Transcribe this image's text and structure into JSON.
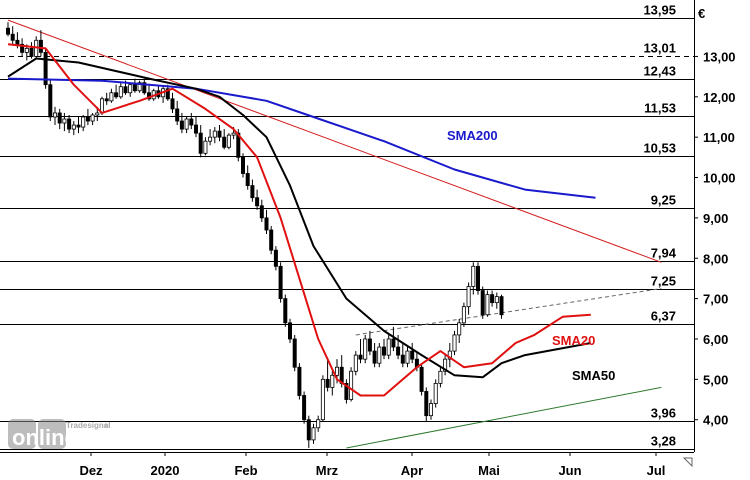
{
  "chart_data": {
    "type": "candlestick",
    "currency": "€",
    "x_ticks": [
      "Dez",
      "2020",
      "Feb",
      "Mrz",
      "Apr",
      "Mai",
      "Jun",
      "Jul"
    ],
    "y_ticks": [
      "4,00",
      "5,00",
      "6,00",
      "7,00",
      "8,00",
      "9,00",
      "10,00",
      "11,00",
      "12,00",
      "13,00"
    ],
    "y_tick_values": [
      4,
      5,
      6,
      7,
      8,
      9,
      10,
      11,
      12,
      13
    ],
    "ylim": [
      3.2,
      14.2
    ],
    "levels": [
      {
        "label": "13,95",
        "value": 13.95,
        "style": "solid"
      },
      {
        "label": "13,01",
        "value": 13.01,
        "style": "dashed"
      },
      {
        "label": "12,43",
        "value": 12.43,
        "style": "solid"
      },
      {
        "label": "11,53",
        "value": 11.53,
        "style": "solid"
      },
      {
        "label": "10,53",
        "value": 10.53,
        "style": "solid"
      },
      {
        "label": "9,25",
        "value": 9.25,
        "style": "solid"
      },
      {
        "label": "7,94",
        "value": 7.94,
        "style": "solid"
      },
      {
        "label": "7,25",
        "value": 7.25,
        "style": "solid"
      },
      {
        "label": "6,37",
        "value": 6.37,
        "style": "solid"
      },
      {
        "label": "3,96",
        "value": 3.96,
        "style": "solid"
      },
      {
        "label": "3,28",
        "value": 3.28,
        "style": "solid"
      }
    ],
    "candles": [
      [
        13.7,
        13.85,
        13.5,
        13.55
      ],
      [
        13.55,
        13.75,
        13.3,
        13.4
      ],
      [
        13.4,
        13.6,
        13.2,
        13.3
      ],
      [
        13.3,
        13.45,
        13.0,
        13.1
      ],
      [
        13.1,
        13.3,
        12.9,
        13.2
      ],
      [
        13.2,
        13.35,
        12.95,
        13.0
      ],
      [
        13.0,
        13.5,
        12.95,
        13.4
      ],
      [
        13.4,
        13.65,
        13.0,
        13.1
      ],
      [
        13.1,
        13.2,
        12.2,
        12.3
      ],
      [
        12.3,
        12.45,
        11.4,
        11.5
      ],
      [
        11.5,
        11.75,
        11.3,
        11.6
      ],
      [
        11.6,
        11.7,
        11.2,
        11.35
      ],
      [
        11.35,
        11.6,
        11.15,
        11.45
      ],
      [
        11.45,
        11.55,
        11.1,
        11.2
      ],
      [
        11.2,
        11.4,
        11.05,
        11.3
      ],
      [
        11.3,
        11.5,
        11.1,
        11.25
      ],
      [
        11.25,
        11.55,
        11.15,
        11.5
      ],
      [
        11.5,
        11.7,
        11.3,
        11.4
      ],
      [
        11.4,
        11.6,
        11.3,
        11.55
      ],
      [
        11.55,
        11.75,
        11.4,
        11.6
      ],
      [
        11.6,
        12.0,
        11.55,
        11.95
      ],
      [
        11.95,
        12.1,
        11.8,
        11.9
      ],
      [
        11.9,
        12.2,
        11.85,
        12.1
      ],
      [
        12.1,
        12.3,
        11.95,
        12.0
      ],
      [
        12.0,
        12.35,
        11.95,
        12.25
      ],
      [
        12.25,
        12.4,
        12.05,
        12.1
      ],
      [
        12.1,
        12.35,
        12.0,
        12.3
      ],
      [
        12.3,
        12.45,
        12.1,
        12.15
      ],
      [
        12.15,
        12.4,
        12.1,
        12.35
      ],
      [
        12.35,
        12.45,
        12.05,
        12.1
      ],
      [
        12.1,
        12.3,
        11.9,
        11.95
      ],
      [
        11.95,
        12.2,
        11.9,
        12.15
      ],
      [
        12.15,
        12.3,
        11.95,
        12.0
      ],
      [
        12.0,
        12.25,
        11.85,
        12.2
      ],
      [
        12.2,
        12.3,
        11.9,
        11.95
      ],
      [
        11.95,
        12.1,
        11.6,
        11.7
      ],
      [
        11.7,
        11.9,
        11.3,
        11.4
      ],
      [
        11.4,
        11.6,
        11.1,
        11.2
      ],
      [
        11.2,
        11.5,
        11.1,
        11.45
      ],
      [
        11.45,
        11.6,
        11.2,
        11.3
      ],
      [
        11.3,
        11.5,
        11.0,
        11.1
      ],
      [
        11.1,
        11.3,
        10.5,
        10.6
      ],
      [
        10.6,
        11.0,
        10.55,
        10.9
      ],
      [
        10.9,
        11.2,
        10.8,
        11.0
      ],
      [
        11.0,
        11.25,
        10.85,
        11.15
      ],
      [
        11.15,
        11.3,
        10.9,
        11.0
      ],
      [
        11.0,
        11.2,
        10.7,
        10.75
      ],
      [
        10.75,
        11.1,
        10.7,
        11.05
      ],
      [
        11.05,
        11.25,
        10.95,
        11.1
      ],
      [
        11.1,
        11.2,
        10.4,
        10.5
      ],
      [
        10.5,
        10.6,
        10.0,
        10.1
      ],
      [
        10.1,
        10.3,
        9.7,
        9.8
      ],
      [
        9.8,
        9.95,
        9.4,
        9.5
      ],
      [
        9.5,
        9.7,
        9.2,
        9.3
      ],
      [
        9.3,
        9.45,
        8.9,
        9.0
      ],
      [
        9.0,
        9.2,
        8.6,
        8.7
      ],
      [
        8.7,
        8.8,
        8.1,
        8.2
      ],
      [
        8.2,
        8.3,
        7.7,
        7.8
      ],
      [
        7.8,
        7.9,
        6.9,
        7.0
      ],
      [
        7.0,
        7.1,
        6.3,
        6.4
      ],
      [
        6.4,
        6.5,
        5.9,
        6.0
      ],
      [
        6.0,
        6.1,
        5.2,
        5.3
      ],
      [
        5.3,
        5.4,
        4.5,
        4.6
      ],
      [
        4.6,
        4.7,
        3.9,
        4.0
      ],
      [
        4.0,
        4.1,
        3.3,
        3.5
      ],
      [
        3.5,
        3.9,
        3.4,
        3.8
      ],
      [
        3.8,
        4.1,
        3.7,
        4.0
      ],
      [
        4.0,
        5.1,
        3.95,
        5.0
      ],
      [
        5.0,
        5.5,
        4.7,
        4.8
      ],
      [
        4.8,
        5.2,
        4.6,
        5.1
      ],
      [
        5.1,
        5.5,
        4.9,
        5.3
      ],
      [
        5.3,
        5.6,
        4.8,
        4.9
      ],
      [
        4.9,
        5.0,
        4.4,
        4.5
      ],
      [
        4.5,
        5.3,
        4.45,
        5.2
      ],
      [
        5.2,
        5.7,
        5.1,
        5.6
      ],
      [
        5.6,
        6.0,
        5.4,
        5.5
      ],
      [
        5.5,
        6.1,
        5.4,
        6.0
      ],
      [
        6.0,
        6.2,
        5.6,
        5.7
      ],
      [
        5.7,
        5.9,
        5.3,
        5.4
      ],
      [
        5.4,
        5.9,
        5.3,
        5.8
      ],
      [
        5.8,
        6.0,
        5.5,
        5.6
      ],
      [
        5.6,
        6.1,
        5.5,
        6.0
      ],
      [
        6.0,
        6.3,
        5.7,
        5.8
      ],
      [
        5.8,
        6.1,
        5.5,
        5.6
      ],
      [
        5.6,
        5.9,
        5.3,
        5.4
      ],
      [
        5.4,
        5.8,
        5.3,
        5.7
      ],
      [
        5.7,
        5.9,
        5.4,
        5.5
      ],
      [
        5.5,
        5.7,
        5.2,
        5.3
      ],
      [
        5.3,
        5.4,
        4.6,
        4.7
      ],
      [
        4.7,
        4.8,
        3.95,
        4.1
      ],
      [
        4.1,
        4.5,
        4.0,
        4.4
      ],
      [
        4.4,
        5.0,
        4.3,
        4.9
      ],
      [
        4.9,
        5.3,
        4.8,
        5.2
      ],
      [
        5.2,
        5.6,
        5.1,
        5.5
      ],
      [
        5.5,
        5.9,
        5.3,
        5.7
      ],
      [
        5.7,
        6.2,
        5.6,
        6.1
      ],
      [
        6.1,
        6.5,
        5.9,
        6.4
      ],
      [
        6.4,
        6.9,
        6.3,
        6.8
      ],
      [
        6.8,
        7.4,
        6.6,
        7.3
      ],
      [
        7.3,
        7.9,
        7.1,
        7.8
      ],
      [
        7.8,
        7.9,
        7.1,
        7.2
      ],
      [
        7.2,
        7.3,
        6.5,
        6.6
      ],
      [
        6.6,
        7.2,
        6.55,
        7.1
      ],
      [
        7.1,
        7.2,
        6.8,
        6.9
      ],
      [
        6.9,
        7.15,
        6.75,
        7.05
      ],
      [
        7.05,
        7.1,
        6.5,
        6.6
      ]
    ],
    "lines": [
      {
        "name": "SMA200",
        "color": "#1a1acc",
        "label": "SMA200",
        "points": [
          [
            0,
            12.45
          ],
          [
            20,
            12.4
          ],
          [
            40,
            12.2
          ],
          [
            55,
            11.9
          ],
          [
            65,
            11.5
          ],
          [
            80,
            10.9
          ],
          [
            95,
            10.2
          ],
          [
            110,
            9.7
          ],
          [
            125,
            9.5
          ]
        ]
      },
      {
        "name": "SMA50",
        "color": "#000000",
        "label": "SMA50",
        "points": [
          [
            0,
            12.5
          ],
          [
            6,
            12.95
          ],
          [
            15,
            12.85
          ],
          [
            30,
            12.45
          ],
          [
            40,
            12.2
          ],
          [
            45,
            12.0
          ],
          [
            50,
            11.55
          ],
          [
            55,
            11.0
          ],
          [
            60,
            9.8
          ],
          [
            65,
            8.3
          ],
          [
            72,
            7.0
          ],
          [
            80,
            6.2
          ],
          [
            88,
            5.6
          ],
          [
            95,
            5.1
          ],
          [
            101,
            5.05
          ],
          [
            105,
            5.4
          ],
          [
            110,
            5.6
          ],
          [
            124,
            5.9
          ]
        ]
      },
      {
        "name": "SMA20",
        "color": "#e01010",
        "label": "SMA20",
        "points": [
          [
            0,
            13.3
          ],
          [
            8,
            13.2
          ],
          [
            14,
            12.3
          ],
          [
            20,
            11.6
          ],
          [
            28,
            11.9
          ],
          [
            35,
            12.2
          ],
          [
            42,
            11.7
          ],
          [
            48,
            11.2
          ],
          [
            53,
            10.5
          ],
          [
            58,
            9.0
          ],
          [
            62,
            7.5
          ],
          [
            66,
            6.0
          ],
          [
            70,
            5.0
          ],
          [
            75,
            4.6
          ],
          [
            80,
            4.6
          ],
          [
            87,
            5.3
          ],
          [
            92,
            5.7
          ],
          [
            97,
            5.3
          ],
          [
            103,
            5.4
          ],
          [
            108,
            5.9
          ],
          [
            112,
            6.1
          ],
          [
            118,
            6.55
          ],
          [
            124,
            6.6
          ]
        ]
      }
    ],
    "trendlines": [
      {
        "from": [
          0,
          13.9
        ],
        "to": [
          139,
          7.9
        ],
        "color": "#d42020"
      },
      {
        "from": [
          74,
          6.1
        ],
        "to": [
          139,
          7.25
        ],
        "color": "#666666",
        "dash": true
      },
      {
        "from": [
          72,
          3.3
        ],
        "to": [
          139,
          4.8
        ],
        "color": "#2c7a2c"
      }
    ],
    "annotations": [
      {
        "text": "SMA200",
        "color": "#1a1acc"
      },
      {
        "text": "SMA20",
        "color": "#e01010"
      },
      {
        "text": "SMA50",
        "color": "#000000"
      }
    ]
  },
  "watermark": {
    "brand": "Tradesignal",
    "registered": "®",
    "product": "online"
  }
}
